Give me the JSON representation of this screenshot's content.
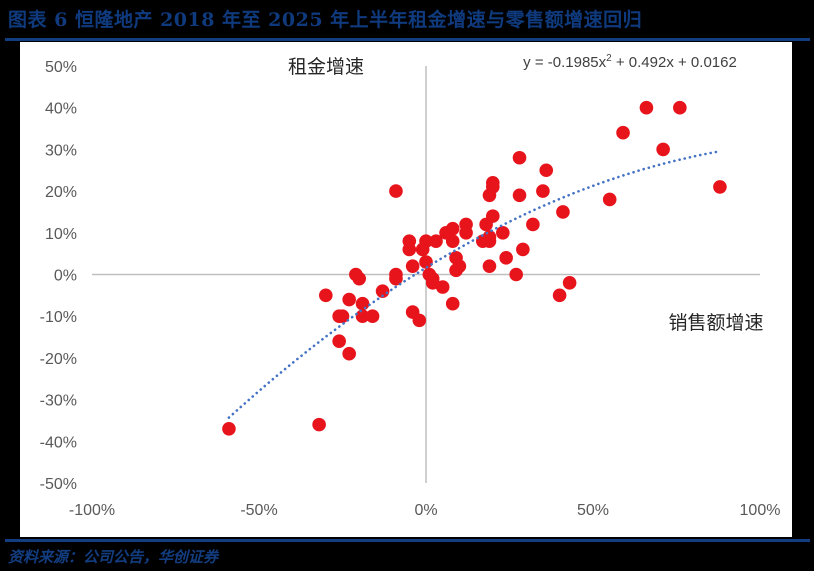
{
  "header": {
    "title": "图表 6   恒隆地产 2018 年至 2025 年上半年租金增速与零售额增速回归"
  },
  "footer": {
    "source": "资料来源：公司公告，华创证券"
  },
  "colors": {
    "title": "#0f3a7d",
    "rule": "#123d80",
    "marker": "#e8141c",
    "trendline": "#4472c4",
    "axis": "#bfbfbf",
    "tick_text": "#595959",
    "label_text": "#262626"
  },
  "chart_data": {
    "type": "scatter",
    "title": "恒隆地产 2018 年至 2025 年上半年租金增速与零售额增速回归",
    "xlabel": "销售额增速",
    "ylabel": "租金增速",
    "xlim": [
      -1.0,
      1.0
    ],
    "ylim": [
      -0.5,
      0.5
    ],
    "x_ticks": [
      "-100%",
      "-50%",
      "0%",
      "50%",
      "100%"
    ],
    "y_ticks": [
      "50%",
      "40%",
      "30%",
      "20%",
      "10%",
      "0%",
      "-10%",
      "-20%",
      "-30%",
      "-40%",
      "-50%"
    ],
    "grid": false,
    "legend": null,
    "trendline": {
      "type": "polynomial",
      "order": 2,
      "equation": "y = -0.1985x² + 0.492x + 0.0162",
      "coefficients": {
        "a": -0.1985,
        "b": 0.492,
        "c": 0.0162
      },
      "x_range": [
        -0.59,
        0.88
      ],
      "style": "dotted"
    },
    "points": [
      [
        -0.59,
        -0.37
      ],
      [
        -0.32,
        -0.36
      ],
      [
        -0.3,
        -0.05
      ],
      [
        -0.23,
        -0.06
      ],
      [
        -0.26,
        -0.1
      ],
      [
        -0.25,
        -0.1
      ],
      [
        -0.19,
        -0.1
      ],
      [
        -0.26,
        -0.16
      ],
      [
        -0.23,
        -0.19
      ],
      [
        -0.21,
        0.0
      ],
      [
        -0.2,
        -0.01
      ],
      [
        -0.19,
        -0.07
      ],
      [
        -0.16,
        -0.1
      ],
      [
        -0.13,
        -0.04
      ],
      [
        -0.09,
        0.0
      ],
      [
        -0.09,
        -0.01
      ],
      [
        -0.09,
        0.2
      ],
      [
        -0.05,
        0.08
      ],
      [
        -0.05,
        0.06
      ],
      [
        -0.04,
        0.02
      ],
      [
        -0.04,
        -0.09
      ],
      [
        -0.02,
        -0.11
      ],
      [
        -0.01,
        0.06
      ],
      [
        0.0,
        0.08
      ],
      [
        0.0,
        0.03
      ],
      [
        0.01,
        0.0
      ],
      [
        0.02,
        -0.01
      ],
      [
        0.02,
        -0.02
      ],
      [
        0.03,
        0.08
      ],
      [
        0.06,
        0.1
      ],
      [
        0.08,
        0.11
      ],
      [
        0.05,
        -0.03
      ],
      [
        0.08,
        0.08
      ],
      [
        0.09,
        0.04
      ],
      [
        0.09,
        0.01
      ],
      [
        0.1,
        0.02
      ],
      [
        0.08,
        -0.07
      ],
      [
        0.12,
        0.12
      ],
      [
        0.12,
        0.1
      ],
      [
        0.17,
        0.08
      ],
      [
        0.18,
        0.12
      ],
      [
        0.19,
        0.09
      ],
      [
        0.19,
        0.08
      ],
      [
        0.19,
        0.19
      ],
      [
        0.2,
        0.21
      ],
      [
        0.2,
        0.22
      ],
      [
        0.2,
        0.14
      ],
      [
        0.19,
        0.02
      ],
      [
        0.23,
        0.1
      ],
      [
        0.24,
        0.04
      ],
      [
        0.28,
        0.28
      ],
      [
        0.28,
        0.19
      ],
      [
        0.27,
        0.0
      ],
      [
        0.29,
        0.06
      ],
      [
        0.32,
        0.12
      ],
      [
        0.35,
        0.2
      ],
      [
        0.36,
        0.25
      ],
      [
        0.41,
        0.15
      ],
      [
        0.4,
        -0.05
      ],
      [
        0.43,
        -0.02
      ],
      [
        0.55,
        0.18
      ],
      [
        0.59,
        0.34
      ],
      [
        0.66,
        0.4
      ],
      [
        0.71,
        0.3
      ],
      [
        0.76,
        0.4
      ],
      [
        0.88,
        0.21
      ]
    ]
  }
}
